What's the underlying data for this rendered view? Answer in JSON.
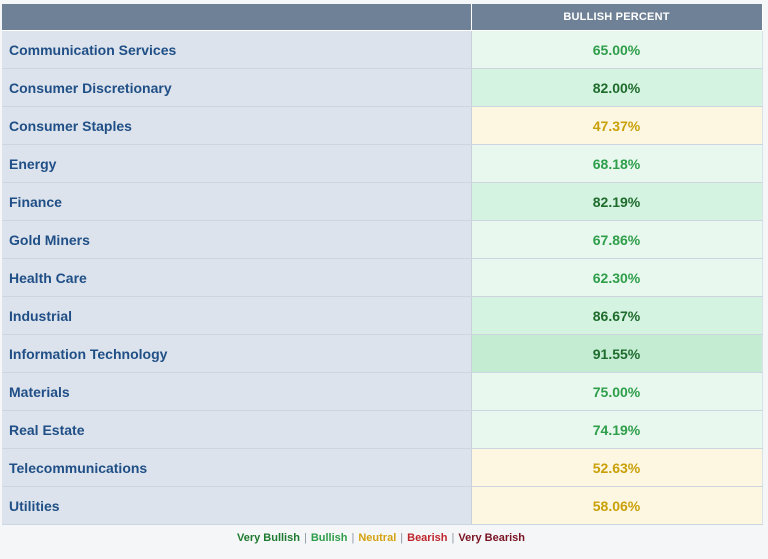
{
  "table": {
    "header": {
      "name_col": "",
      "value_col": "BULLISH PERCENT"
    },
    "rows": [
      {
        "sector": "Communication Services",
        "value": "65.00%",
        "rating": "bullish"
      },
      {
        "sector": "Consumer Discretionary",
        "value": "82.00%",
        "rating": "very-bullish"
      },
      {
        "sector": "Consumer Staples",
        "value": "47.37%",
        "rating": "neutral"
      },
      {
        "sector": "Energy",
        "value": "68.18%",
        "rating": "bullish"
      },
      {
        "sector": "Finance",
        "value": "82.19%",
        "rating": "very-bullish"
      },
      {
        "sector": "Gold Miners",
        "value": "67.86%",
        "rating": "bullish"
      },
      {
        "sector": "Health Care",
        "value": "62.30%",
        "rating": "bullish"
      },
      {
        "sector": "Industrial",
        "value": "86.67%",
        "rating": "very-bullish"
      },
      {
        "sector": "Information Technology",
        "value": "91.55%",
        "rating": "very-bullish-strong"
      },
      {
        "sector": "Materials",
        "value": "75.00%",
        "rating": "bullish"
      },
      {
        "sector": "Real Estate",
        "value": "74.19%",
        "rating": "bullish"
      },
      {
        "sector": "Telecommunications",
        "value": "52.63%",
        "rating": "neutral"
      },
      {
        "sector": "Utilities",
        "value": "58.06%",
        "rating": "neutral"
      }
    ]
  },
  "legend": [
    {
      "label": "Very Bullish",
      "color": "#1e7a2e"
    },
    {
      "label": "Bullish",
      "color": "#2e9e4a"
    },
    {
      "label": "Neutral",
      "color": "#d4a20e"
    },
    {
      "label": "Bearish",
      "color": "#c0262d"
    },
    {
      "label": "Very Bearish",
      "color": "#7a1322"
    }
  ],
  "rating_styles": {
    "very-bullish-strong": {
      "bg": "#c3ecd3",
      "fg": "#1e6b2c"
    },
    "very-bullish": {
      "bg": "#d5f3e1",
      "fg": "#1e6b2c"
    },
    "bullish": {
      "bg": "#e8f8ee",
      "fg": "#2e9e4a"
    },
    "neutral": {
      "bg": "#fdf7e1",
      "fg": "#c9a008"
    }
  }
}
